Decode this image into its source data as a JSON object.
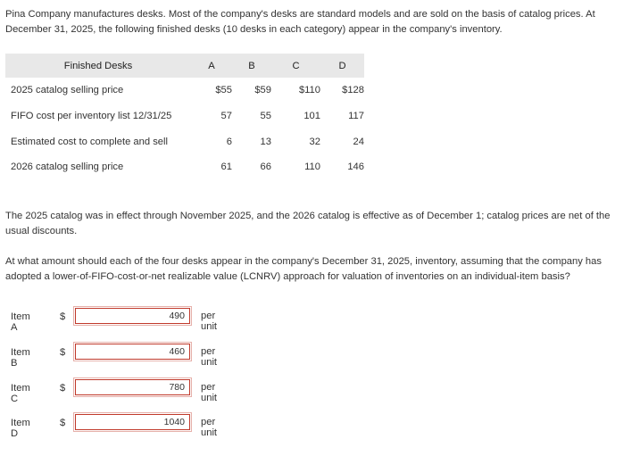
{
  "intro": "Pina Company manufactures desks. Most of the company's desks are standard models and are sold on the basis of catalog prices. At December 31, 2025, the following finished desks (10 desks in each category) appear in the company's inventory.",
  "table": {
    "header": [
      "Finished Desks",
      "A",
      "B",
      "C",
      "D"
    ],
    "rows": [
      {
        "label": "2025 catalog selling price",
        "values": [
          "$55",
          "$59",
          "$110",
          "$128"
        ]
      },
      {
        "label": "FIFO cost per inventory list 12/31/25",
        "values": [
          "57",
          "55",
          "101",
          "117"
        ]
      },
      {
        "label": "Estimated cost to complete and sell",
        "values": [
          "6",
          "13",
          "32",
          "24"
        ]
      },
      {
        "label": "2026 catalog selling price",
        "values": [
          "61",
          "66",
          "110",
          "146"
        ]
      }
    ]
  },
  "note": "The 2025 catalog was in effect through November 2025, and the 2026 catalog is effective as of December 1; catalog prices are net of the usual discounts.",
  "question": "At what amount should each of the four desks appear in the company's December 31, 2025, inventory, assuming that the company has adopted a lower-of-FIFO-cost-or-net realizable value (LCNRV) approach for valuation of inventories on an individual-item basis?",
  "answers": [
    {
      "item": "Item A",
      "currency": "$",
      "value": "490",
      "unit": "per unit"
    },
    {
      "item": "Item B",
      "currency": "$",
      "value": "460",
      "unit": "per unit"
    },
    {
      "item": "Item C",
      "currency": "$",
      "value": "780",
      "unit": "per unit"
    },
    {
      "item": "Item D",
      "currency": "$",
      "value": "1040",
      "unit": "per unit"
    }
  ]
}
